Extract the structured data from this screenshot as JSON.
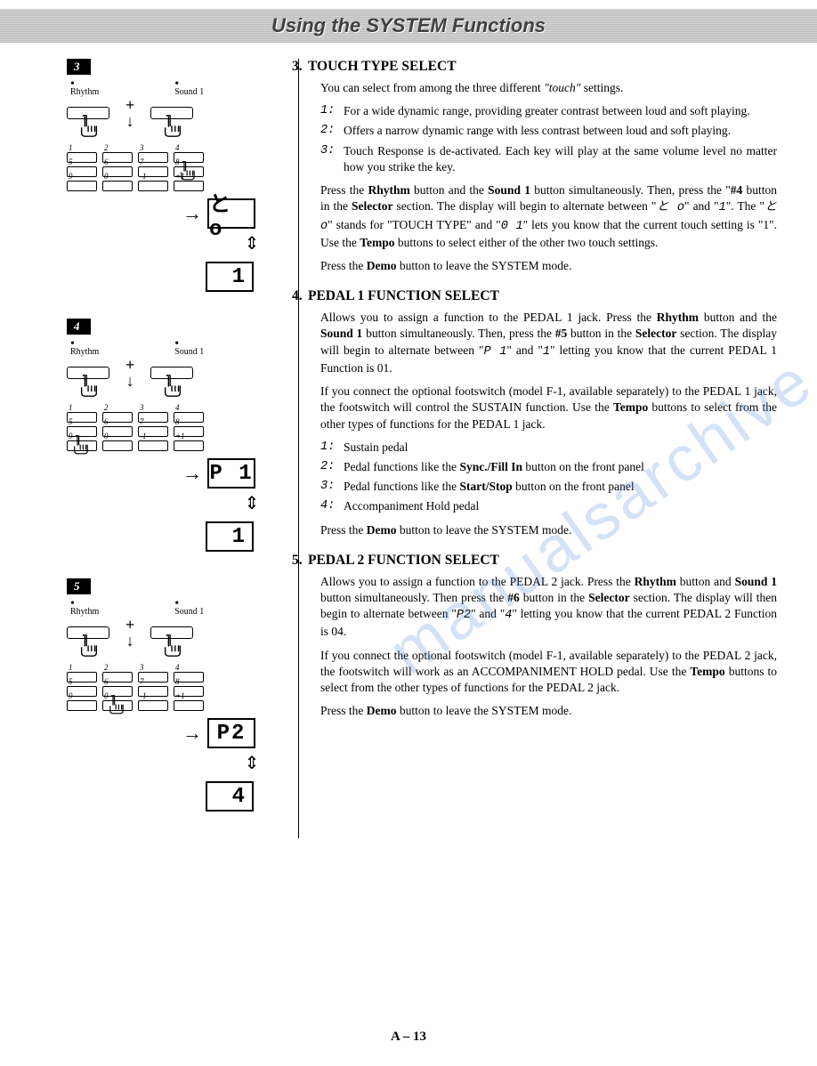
{
  "header": {
    "title": "Using the SYSTEM Functions"
  },
  "watermark": "manualsarchive.com",
  "page_number": "A – 13",
  "diagrams": [
    {
      "step": "3",
      "left_label": "Rhythm",
      "right_label": "Sound 1",
      "num_rows": [
        [
          "1",
          "2",
          "3",
          "4"
        ],
        [
          "5",
          "6",
          "7",
          "8"
        ],
        [
          "9",
          "0",
          "-1",
          "+1"
        ]
      ],
      "pressed_num": "4",
      "lcd1": "と o",
      "lcd2": "1"
    },
    {
      "step": "4",
      "left_label": "Rhythm",
      "right_label": "Sound 1",
      "num_rows": [
        [
          "1",
          "2",
          "3",
          "4"
        ],
        [
          "5",
          "6",
          "7",
          "8"
        ],
        [
          "9",
          "0",
          "-1",
          "+1"
        ]
      ],
      "pressed_num": "5",
      "lcd1": "P 1",
      "lcd2": "1"
    },
    {
      "step": "5",
      "left_label": "Rhythm",
      "right_label": "Sound 1",
      "num_rows": [
        [
          "1",
          "2",
          "3",
          "4"
        ],
        [
          "5",
          "6",
          "7",
          "8"
        ],
        [
          "9",
          "0",
          "-1",
          "+1"
        ]
      ],
      "pressed_num": "6",
      "lcd1": "P2",
      "lcd2": "4"
    }
  ],
  "sections": [
    {
      "number": "3.",
      "title": "TOUCH TYPE SELECT",
      "intro": "You can select from among the three different \"touch\" settings.",
      "options": [
        {
          "n": "1:",
          "t": "For a wide dynamic range, providing greater contrast between loud and soft playing."
        },
        {
          "n": "2:",
          "t": "Offers a narrow dynamic range with less contrast between loud and soft playing."
        },
        {
          "n": "3:",
          "t": "Touch Response is de-activated. Each key will play at the same volume level no matter how you strike the key."
        }
      ],
      "paras": [
        "Press the <b>Rhythm</b> button and the <b>Sound 1</b> button simultaneously. Then, press the \"<b>#4</b> button in the <b>Selector</b> section. The display will begin to alternate between \"<span class='seg'>と o</span>\" and \"<span class='seg'>1</span>\". The \"<span class='seg'>と o</span>\" stands for \"TOUCH TYPE\" and \"<span class='seg'>0 1</span>\" lets you know that the current touch setting is \"1\". Use the <b>Tempo</b> buttons to select either of the other two touch settings.",
        "Press the <b>Demo</b> button to leave the SYSTEM mode."
      ]
    },
    {
      "number": "4.",
      "title": "PEDAL 1 FUNCTION SELECT",
      "intro": "Allows you to assign a function to the PEDAL 1 jack. Press the <b>Rhythm</b> button and the <b>Sound 1</b> button simultaneously. Then, press the <b>#5</b> button in the <b>Selector</b> section. The display will begin to alternate between \"<span class='seg'>P 1</span>\" and \"<span class='seg'>1</span>\" letting you know that the current PEDAL 1 Function is 01.",
      "para2": "If you connect the optional footswitch (model F-1, available separately) to the PEDAL 1 jack, the footswitch will control the SUSTAIN function. Use the <b>Tempo</b> buttons to select from the other types of functions for the PEDAL 1 jack.",
      "options": [
        {
          "n": "1:",
          "t": "Sustain pedal"
        },
        {
          "n": "2:",
          "t": "Pedal functions like the <b>Sync./Fill In</b> button on the front panel"
        },
        {
          "n": "3:",
          "t": "Pedal functions like the <b>Start/Stop</b> button on the front panel"
        },
        {
          "n": "4:",
          "t": "Accompaniment Hold pedal"
        }
      ],
      "outro": "Press the <b>Demo</b> button to leave the SYSTEM mode."
    },
    {
      "number": "5.",
      "title": "PEDAL 2 FUNCTION SELECT",
      "paras": [
        "Allows you to assign a function to the PEDAL 2 jack. Press the <b>Rhythm</b> button and <b>Sound 1</b> button simultaneously. Then press the <b>#6</b> button in the <b>Selector</b> section. The display will then begin to alternate between \"<span class='seg'>P2</span>\" and \"<span class='seg'>4</span>\" letting you know that the current PEDAL 2 Function is 04.",
        "If you connect the optional footswitch (model F-1, available separately) to the PEDAL 2 jack, the footswitch will work as an ACCOMPANIMENT HOLD pedal. Use the <b>Tempo</b> buttons to select from the other types of functions for the PEDAL 2 jack.",
        "Press the <b>Demo</b> button to leave the SYSTEM mode."
      ]
    }
  ]
}
